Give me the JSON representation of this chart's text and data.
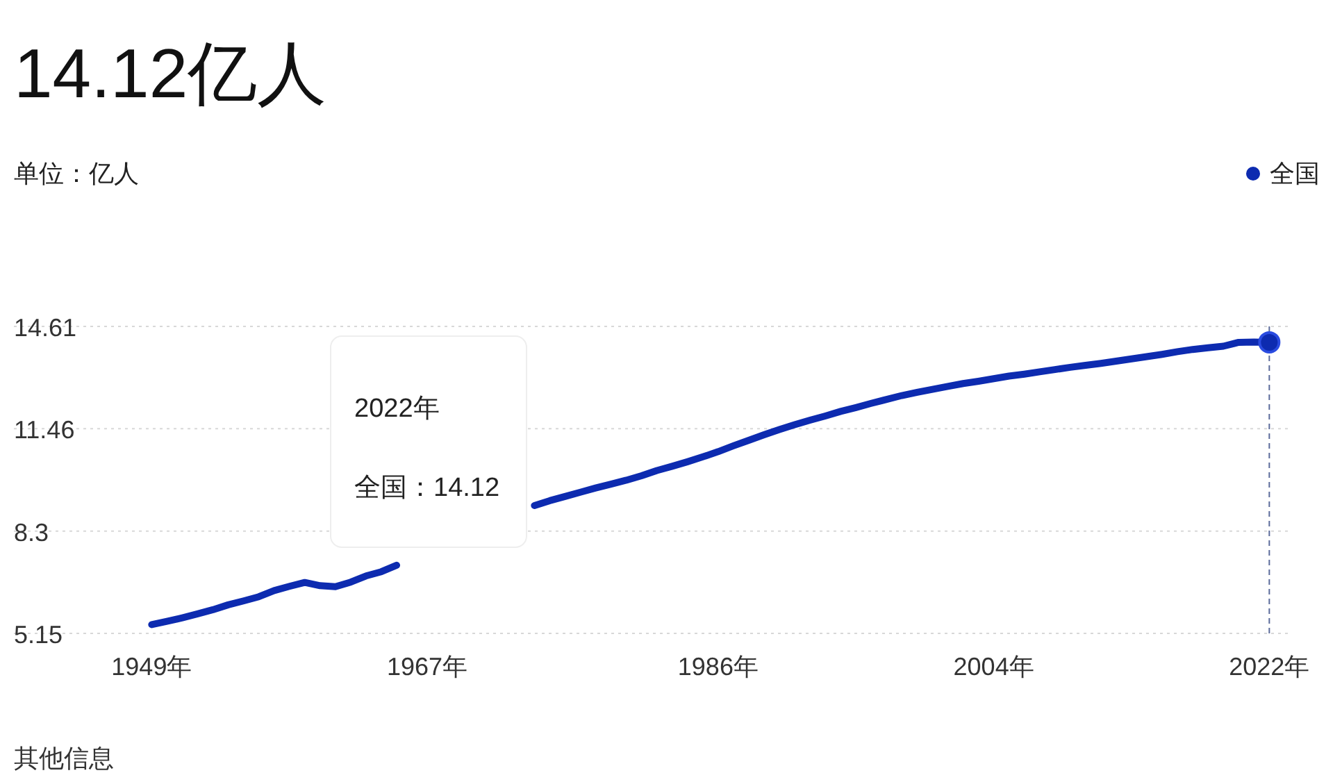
{
  "chart_data": {
    "type": "line",
    "title": "14.12亿人",
    "subtitle": "单位：亿人",
    "x": [
      1949,
      1950,
      1951,
      1952,
      1953,
      1954,
      1955,
      1956,
      1957,
      1958,
      1959,
      1960,
      1961,
      1962,
      1963,
      1964,
      1965,
      1966,
      1967,
      1968,
      1969,
      1970,
      1971,
      1972,
      1973,
      1974,
      1975,
      1976,
      1977,
      1978,
      1979,
      1980,
      1981,
      1982,
      1983,
      1984,
      1985,
      1986,
      1987,
      1988,
      1989,
      1990,
      1991,
      1992,
      1993,
      1994,
      1995,
      1996,
      1997,
      1998,
      1999,
      2000,
      2001,
      2002,
      2003,
      2004,
      2005,
      2006,
      2007,
      2008,
      2009,
      2010,
      2011,
      2012,
      2013,
      2014,
      2015,
      2016,
      2017,
      2018,
      2019,
      2020,
      2021,
      2022
    ],
    "series": [
      {
        "name": "全国",
        "color": "#0d2bb0",
        "values": [
          5.42,
          5.52,
          5.63,
          5.75,
          5.88,
          6.03,
          6.15,
          6.28,
          6.47,
          6.6,
          6.72,
          6.62,
          6.59,
          6.73,
          6.92,
          7.05,
          7.25,
          null,
          null,
          null,
          null,
          null,
          null,
          null,
          null,
          9.09,
          9.24,
          9.37,
          9.5,
          9.63,
          9.75,
          9.87,
          10.01,
          10.17,
          10.3,
          10.44,
          10.59,
          10.75,
          10.93,
          11.1,
          11.27,
          11.43,
          11.58,
          11.72,
          11.85,
          11.99,
          12.11,
          12.24,
          12.36,
          12.48,
          12.58,
          12.67,
          12.76,
          12.85,
          12.92,
          13.0,
          13.08,
          13.14,
          13.21,
          13.28,
          13.35,
          13.41,
          13.47,
          13.54,
          13.61,
          13.68,
          13.75,
          13.83,
          13.9,
          13.95,
          14.0,
          14.12,
          14.13,
          14.12
        ]
      }
    ],
    "xlim": [
      1940,
      2023.3
    ],
    "ylim": [
      5.15,
      14.61
    ],
    "xticks": [
      {
        "value": 1949,
        "label": "1949年"
      },
      {
        "value": 1967,
        "label": "1967年"
      },
      {
        "value": 1986,
        "label": "1986年"
      },
      {
        "value": 2004,
        "label": "2004年"
      },
      {
        "value": 2022,
        "label": "2022年"
      }
    ],
    "yticks": [
      5.15,
      8.3,
      11.46,
      14.61
    ],
    "grid": "y",
    "legend": "top right",
    "ref_lines": [
      {
        "axis": "x",
        "value": 2022,
        "color": "#5a6a9a",
        "line_style": "dashed"
      }
    ],
    "annotations": [
      "2022年",
      "全国：14.12",
      "其他信息"
    ]
  }
}
